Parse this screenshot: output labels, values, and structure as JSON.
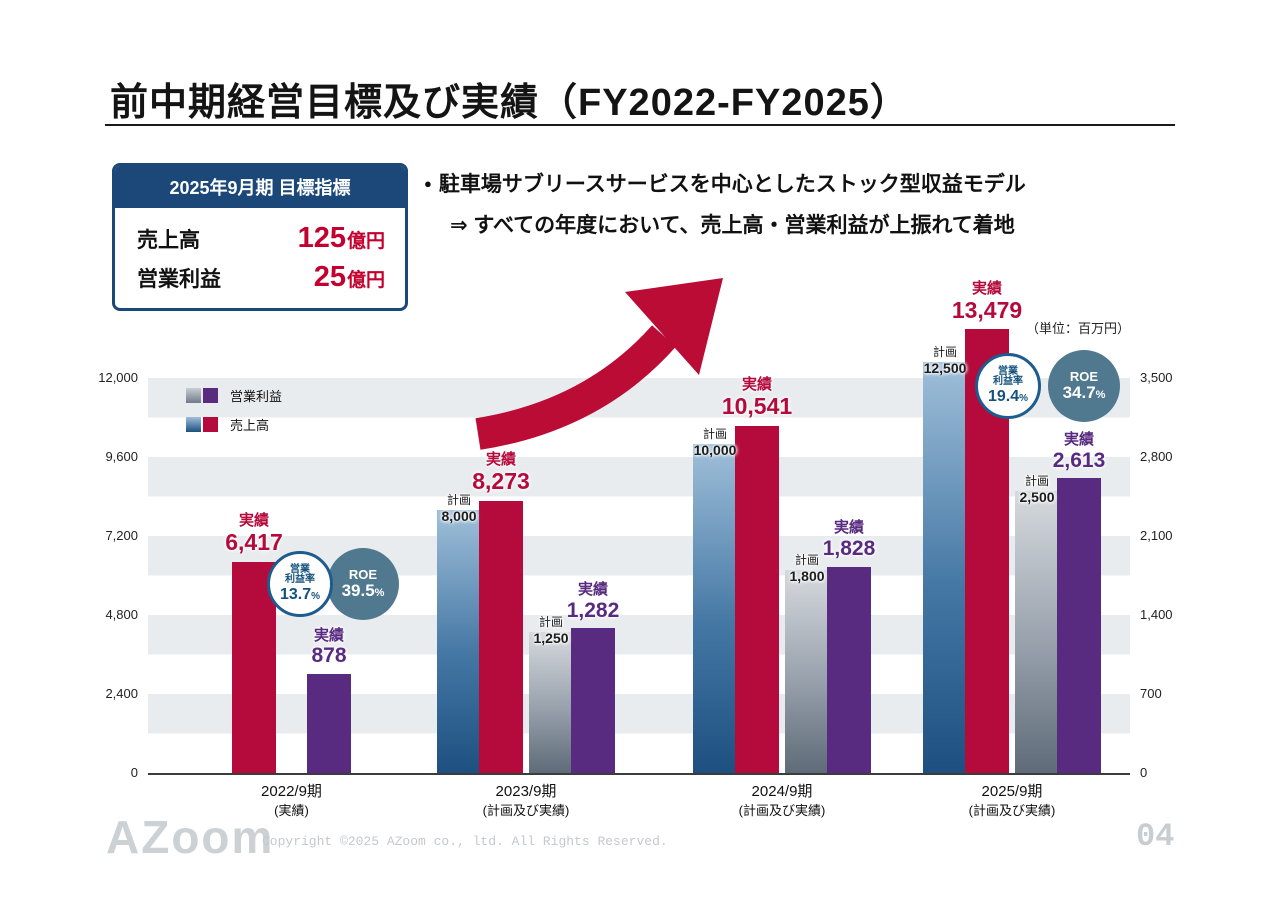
{
  "slide": {
    "title": "前中期経営目標及び実績（FY2022-FY2025）",
    "page_number": "04",
    "footer": {
      "logo": "AZoom",
      "copyright": "Copyright ©2025 AZoom co., ltd. All Rights Reserved."
    }
  },
  "target_box": {
    "header": "2025年9月期 目標指標",
    "rows": [
      {
        "label": "売上高",
        "value": "125",
        "unit": "億円"
      },
      {
        "label": "営業利益",
        "value": "25",
        "unit": "億円"
      }
    ]
  },
  "bullets": {
    "marker": "●",
    "line1": "駐車場サブリースサービスを中心としたストック型収益モデル",
    "line2": "⇒ すべての年度において、売上高・営業利益が上振れて着地"
  },
  "chart_data": {
    "type": "bar",
    "unit_note": "（単位：百万円）",
    "left_axis": {
      "applies_to": "売上高",
      "max": 12000,
      "ticks": [
        "12,000",
        "9,600",
        "7,200",
        "4,800",
        "2,400",
        "0"
      ]
    },
    "right_axis": {
      "applies_to": "営業利益",
      "max": 3500,
      "ticks": [
        "3,500",
        "2,800",
        "2,100",
        "1,400",
        "700",
        "0"
      ]
    },
    "legend": [
      {
        "label": "営業利益"
      },
      {
        "label": "売上高"
      }
    ],
    "labels": {
      "plan": "計画",
      "actual": "実績",
      "operating_margin": [
        "営業",
        "利益率"
      ],
      "roe": "ROE",
      "percent": "%"
    },
    "groups": [
      {
        "category": "2022/9期",
        "note": "(実績)",
        "revenue": {
          "actual": 6417
        },
        "profit": {
          "actual": 878
        },
        "ratios": {
          "operating_margin": "13.7",
          "roe": "39.5"
        }
      },
      {
        "category": "2023/9期",
        "note": "(計画及び実績)",
        "revenue": {
          "plan": 8000,
          "actual": 8273
        },
        "profit": {
          "plan": 1250,
          "actual": 1282
        }
      },
      {
        "category": "2024/9期",
        "note": "(計画及び実績)",
        "revenue": {
          "plan": 10000,
          "actual": 10541
        },
        "profit": {
          "plan": 1800,
          "actual": 1828
        }
      },
      {
        "category": "2025/9期",
        "note": "(計画及び実績)",
        "revenue": {
          "plan": 12500,
          "actual": 13479
        },
        "profit": {
          "plan": 2500,
          "actual": 2613
        },
        "ratios": {
          "operating_margin": "19.4",
          "roe": "34.7"
        }
      }
    ],
    "colors": {
      "revenue_actual": "#b50b3c",
      "revenue_plan_top": "#9fbfd9",
      "revenue_plan_bottom": "#1d5080",
      "profit_actual": "#582b80",
      "profit_plan_top": "#d6dade",
      "profit_plan_bottom": "#5f6b79",
      "margin_circle_border": "#1d5c8c",
      "roe_circle_bg": "#50798f",
      "target_header_bg": "#1b4878",
      "target_value_red": "#c3002e"
    }
  }
}
